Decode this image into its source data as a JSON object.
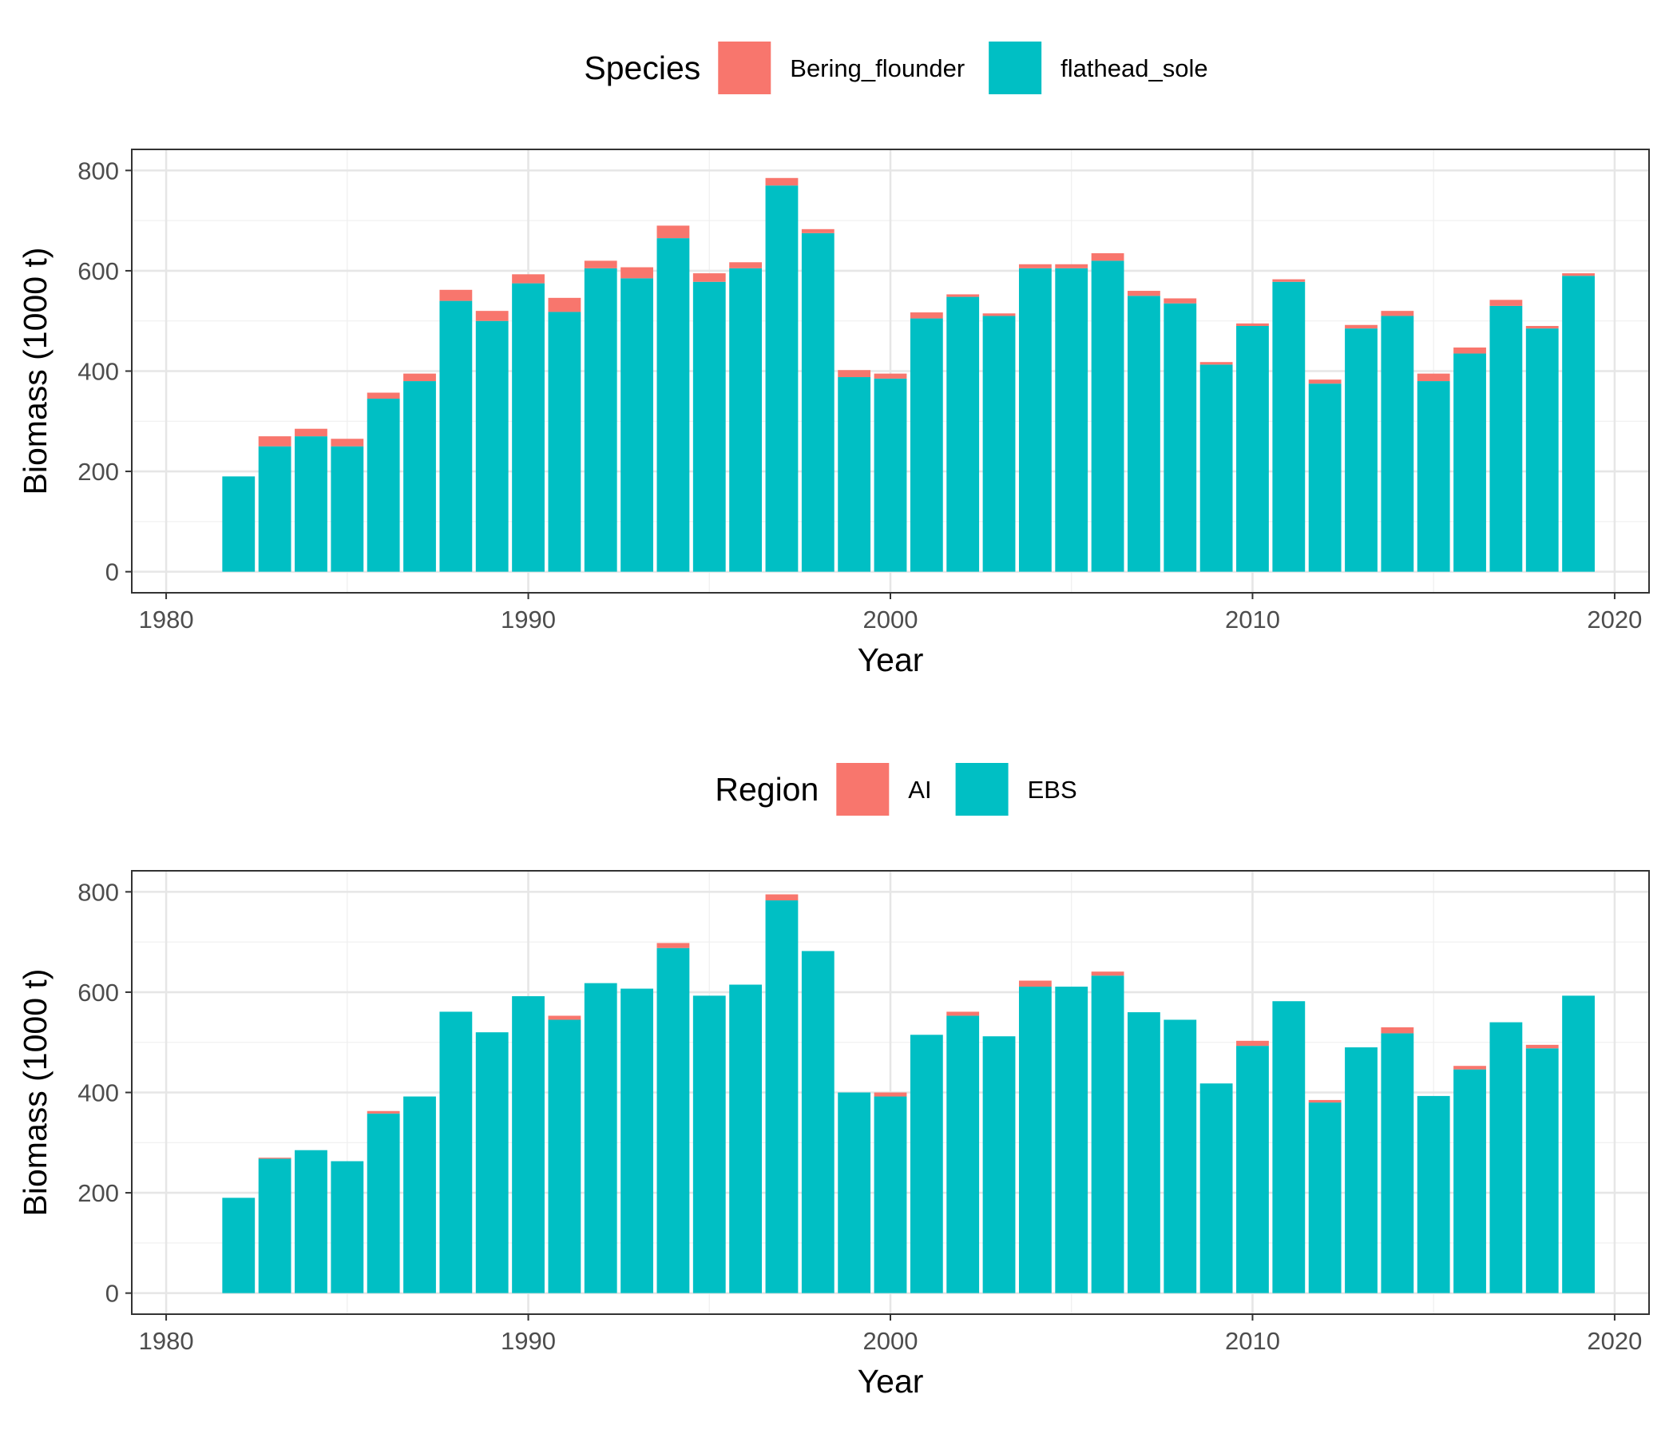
{
  "chart_data": [
    {
      "type": "bar",
      "stacked": true,
      "xlabel": "Year",
      "ylabel": "Biomass (1000 t)",
      "legend_title": "Species",
      "legend_position": "top",
      "xlim": [
        1980,
        2020
      ],
      "ylim": [
        0,
        800
      ],
      "x_ticks": [
        "1980",
        "1990",
        "2000",
        "2010",
        "2020"
      ],
      "y_ticks": [
        "0",
        "200",
        "400",
        "600",
        "800"
      ],
      "grid": true,
      "x": [
        1982,
        1983,
        1984,
        1985,
        1986,
        1987,
        1988,
        1989,
        1990,
        1991,
        1992,
        1993,
        1994,
        1995,
        1996,
        1997,
        1998,
        1999,
        2000,
        2001,
        2002,
        2003,
        2004,
        2005,
        2006,
        2007,
        2008,
        2009,
        2010,
        2011,
        2012,
        2013,
        2014,
        2015,
        2016,
        2017,
        2018,
        2019
      ],
      "series": [
        {
          "name": "flathead_sole",
          "color": "#00BFC4",
          "values": [
            190,
            250,
            270,
            250,
            345,
            380,
            540,
            500,
            575,
            518,
            605,
            585,
            665,
            578,
            605,
            770,
            675,
            388,
            385,
            505,
            548,
            510,
            605,
            605,
            620,
            550,
            535,
            413,
            490,
            578,
            375,
            485,
            510,
            380,
            435,
            530,
            485,
            590
          ]
        },
        {
          "name": "Bering_flounder",
          "color": "#F8766D",
          "values": [
            0,
            20,
            15,
            15,
            12,
            15,
            22,
            20,
            18,
            28,
            15,
            22,
            25,
            17,
            12,
            15,
            8,
            14,
            10,
            12,
            5,
            5,
            8,
            8,
            15,
            10,
            10,
            5,
            5,
            5,
            8,
            7,
            10,
            15,
            12,
            12,
            5,
            5
          ]
        }
      ]
    },
    {
      "type": "bar",
      "stacked": true,
      "xlabel": "Year",
      "ylabel": "Biomass (1000 t)",
      "legend_title": "Region",
      "legend_position": "top",
      "xlim": [
        1980,
        2020
      ],
      "ylim": [
        0,
        800
      ],
      "x_ticks": [
        "1980",
        "1990",
        "2000",
        "2010",
        "2020"
      ],
      "y_ticks": [
        "0",
        "200",
        "400",
        "600",
        "800"
      ],
      "grid": true,
      "x": [
        1982,
        1983,
        1984,
        1985,
        1986,
        1987,
        1988,
        1989,
        1990,
        1991,
        1992,
        1993,
        1994,
        1995,
        1996,
        1997,
        1998,
        1999,
        2000,
        2001,
        2002,
        2003,
        2004,
        2005,
        2006,
        2007,
        2008,
        2009,
        2010,
        2011,
        2012,
        2013,
        2014,
        2015,
        2016,
        2017,
        2018,
        2019
      ],
      "series": [
        {
          "name": "EBS",
          "color": "#00BFC4",
          "values": [
            190,
            268,
            285,
            263,
            358,
            392,
            561,
            520,
            592,
            545,
            618,
            607,
            688,
            593,
            615,
            783,
            682,
            400,
            392,
            515,
            553,
            512,
            611,
            611,
            633,
            560,
            545,
            418,
            493,
            582,
            380,
            490,
            518,
            393,
            446,
            540,
            488,
            593
          ]
        },
        {
          "name": "AI",
          "color": "#F8766D",
          "values": [
            0,
            2,
            0,
            0,
            5,
            0,
            0,
            0,
            0,
            8,
            0,
            0,
            10,
            0,
            0,
            12,
            0,
            0,
            8,
            0,
            8,
            0,
            12,
            0,
            8,
            0,
            0,
            0,
            10,
            0,
            5,
            0,
            12,
            0,
            7,
            0,
            7,
            0
          ]
        }
      ]
    }
  ]
}
